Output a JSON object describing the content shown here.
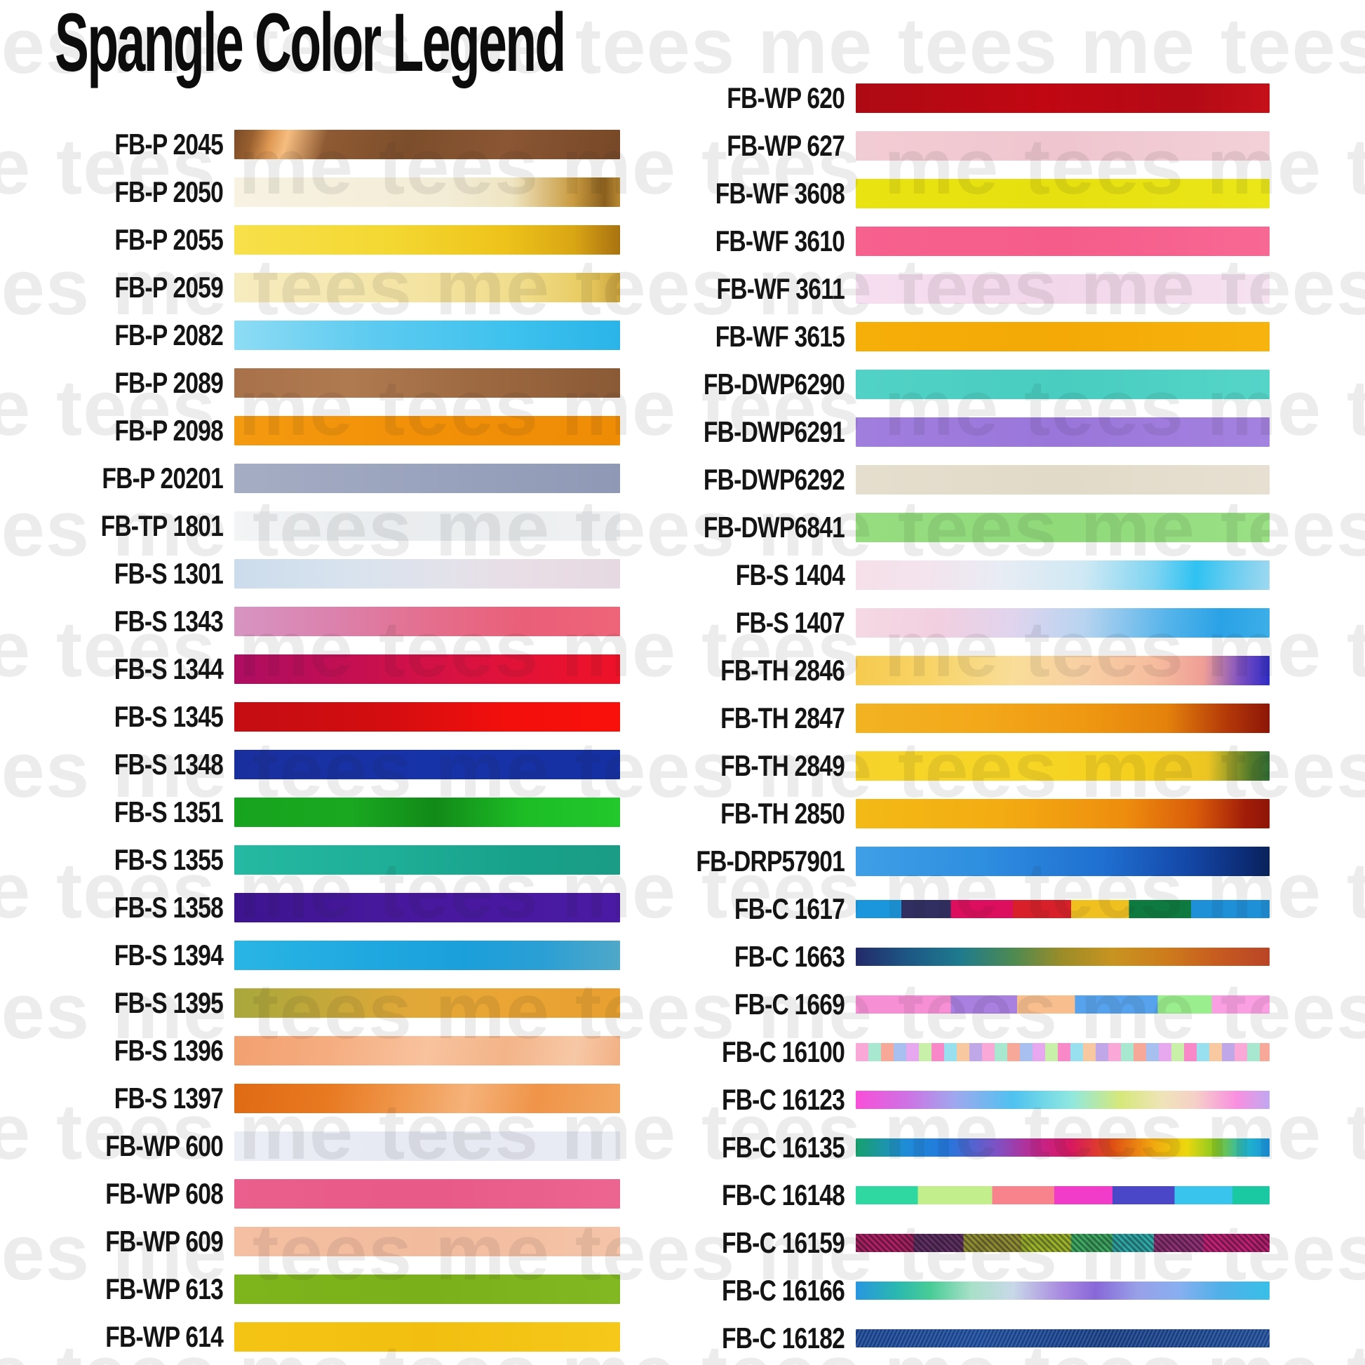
{
  "title": "Spangle Color Legend",
  "watermark": {
    "text": "tees me",
    "color": "rgba(40,40,40,0.085)"
  },
  "columns": {
    "left": [
      {
        "label": "FB-P 2045",
        "size": "standard",
        "swatch_css": "linear-gradient(105deg,#7a4a28 0%,#99602f 5%,#e09a55 10%,#f6bd80 14%,#8e5a33 24%,#7d4e2b 45%,#8a5633 70%,#774827 100%)"
      },
      {
        "label": "FB-P 2050",
        "size": "standard",
        "swatch_css": "linear-gradient(90deg,#f7f2e2 0%,#f3ecd6 55%,#efe5c2 72%,#c99a3f 88%,#8a5f1d 96%,#b98a33 100%)"
      },
      {
        "label": "FB-P 2055",
        "size": "standard",
        "swatch_css": "linear-gradient(90deg,#f7e04a 0%,#f4d832 40%,#eec31a 70%,#d9a614 88%,#b57e12 97%,#a87410 100%)"
      },
      {
        "label": "FB-P 2059",
        "size": "standard",
        "swatch_css": "linear-gradient(90deg,#f7ecc0 0%,#f4e4a4 45%,#f0dc8a 75%,#e7c95e 92%,#caa23c 100%)"
      },
      {
        "label": "FB-P 2082",
        "size": "standard",
        "swatch_css": "linear-gradient(90deg,#8edcf5 0%,#5ecbf0 35%,#3fc2ee 70%,#2ab4e8 100%)"
      },
      {
        "label": "FB-P 2089",
        "size": "standard",
        "swatch_css": "linear-gradient(90deg,#a8714a 0%,#b07a50 30%,#9c6840 65%,#8a5a36 100%)"
      },
      {
        "label": "FB-P 2098",
        "size": "standard",
        "swatch_css": "linear-gradient(90deg,#f49a10 0%,#f29008 50%,#ef8c06 100%)"
      },
      {
        "label": "FB-P 20201",
        "size": "standard",
        "swatch_css": "linear-gradient(90deg,#a5adc4 0%,#9aa3bd 50%,#8f99b5 100%)"
      },
      {
        "label": "FB-TP 1801",
        "size": "standard",
        "swatch_css": "linear-gradient(90deg,#f2f4f5 0%,#e9ecee 40%,#eff1f2 100%)"
      },
      {
        "label": "FB-S 1301",
        "size": "standard",
        "swatch_css": "linear-gradient(90deg,#ccdcec 0%,#d8e3ee 30%,#e3e2ea 55%,#e9dde6 75%,#e6d9e2 100%)"
      },
      {
        "label": "FB-S 1343",
        "size": "standard",
        "swatch_css": "linear-gradient(90deg,#d795c2 0%,#db82ae 25%,#e46f8e 50%,#ea5f78 75%,#ee6478 100%)"
      },
      {
        "label": "FB-S 1344",
        "size": "standard",
        "swatch_css": "linear-gradient(90deg,#ad0d62 0%,#c40f52 30%,#da1240 60%,#e81230 85%,#ee1228 100%)"
      },
      {
        "label": "FB-S 1345",
        "size": "standard",
        "swatch_css": "linear-gradient(90deg,#c40d12 0%,#d40d10 40%,#f20f0c 70%,#fa100a 100%)"
      },
      {
        "label": "FB-S 1348",
        "size": "standard",
        "swatch_css": "linear-gradient(90deg,#1a2f9e 0%,#1733a8 50%,#1530a2 100%)"
      },
      {
        "label": "FB-S 1351",
        "size": "standard",
        "swatch_css": "linear-gradient(90deg,#17a31d 0%,#1aa821 30%,#128a18 52%,#1dbd26 75%,#22c82c 100%)"
      },
      {
        "label": "FB-S 1355",
        "size": "standard",
        "swatch_css": "linear-gradient(90deg,#25b9a2 0%,#1fae97 40%,#17a18b 75%,#1b9c85 100%)"
      },
      {
        "label": "FB-S 1358",
        "size": "standard",
        "swatch_css": "linear-gradient(90deg,#3d1490 0%,#47189c 40%,#4a1aa4 100%)"
      },
      {
        "label": "FB-S 1394",
        "size": "standard",
        "swatch_css": "linear-gradient(90deg,#29b5e4 0%,#1fa8e0 35%,#1b9fdb 60%,#2b9fd4 80%,#4fa8c8 100%)"
      },
      {
        "label": "FB-S 1395",
        "size": "standard",
        "swatch_css": "linear-gradient(90deg,#a8a83c 0%,#c0a83a 20%,#e0a838 45%,#eaa534 70%,#e8a030 100%)"
      },
      {
        "label": "FB-S 1396",
        "size": "standard",
        "swatch_css": "linear-gradient(100deg,#f2a070 0%,#f5ad80 25%,#f8c39e 50%,#f3b488 70%,#f7c8a6 88%,#f2b084 100%)"
      },
      {
        "label": "FB-S 1397",
        "size": "standard",
        "swatch_css": "linear-gradient(100deg,#e06a14 0%,#e87a22 25%,#f09a50 45%,#f5b27a 60%,#ef9448 78%,#f2a862 100%)"
      },
      {
        "label": "FB-WP 600",
        "size": "standard",
        "swatch_css": "linear-gradient(90deg,#eceef6 0%,#e6e9f2 50%,#eaecf4 100%)"
      },
      {
        "label": "FB-WP 608",
        "size": "standard",
        "swatch_css": "linear-gradient(90deg,#ea5f8d 0%,#e85a88 50%,#ec6590 100%)"
      },
      {
        "label": "FB-WP 609",
        "size": "standard",
        "swatch_css": "linear-gradient(90deg,#f4bfa2 0%,#f2bb9e 50%,#f5c4a8 100%)"
      },
      {
        "label": "FB-WP 613",
        "size": "standard",
        "swatch_css": "linear-gradient(90deg,#7eb41c 0%,#7ab019 50%,#82b822 100%)"
      },
      {
        "label": "FB-WP 614",
        "size": "standard",
        "swatch_css": "linear-gradient(90deg,#f4c414 0%,#f2bf10 50%,#f5c81a 100%)"
      }
    ],
    "right": [
      {
        "label": "FB-WP 620",
        "size": "standard",
        "swatch_css": "linear-gradient(90deg,#ae0a14 0%,#c00712 45%,#b30a16 80%,#c51018 100%)"
      },
      {
        "label": "FB-WP 627",
        "size": "standard",
        "swatch_css": "linear-gradient(90deg,#f2ccd4 0%,#efc6cf 50%,#f3d0d8 100%)"
      },
      {
        "label": "FB-WF 3608",
        "size": "standard",
        "swatch_css": "linear-gradient(90deg,#e9e312 0%,#e6e010 50%,#ebe618 100%)"
      },
      {
        "label": "FB-WF 3610",
        "size": "standard",
        "swatch_css": "linear-gradient(90deg,#f7618e 0%,#f55c8a 50%,#f86894 100%)"
      },
      {
        "label": "FB-WF 3611",
        "size": "standard",
        "swatch_css": "linear-gradient(90deg,#f6dff0 0%,#f2d7ea 50%,#f6e2f0 100%)"
      },
      {
        "label": "FB-WF 3615",
        "size": "standard",
        "swatch_css": "linear-gradient(90deg,#f6ae08 0%,#f4a906 50%,#f7b30e 100%)"
      },
      {
        "label": "FB-DWP6290",
        "size": "standard",
        "swatch_css": "linear-gradient(90deg,#52d2c6 0%,#48cdc0 50%,#55d5c8 100%)"
      },
      {
        "label": "FB-DWP6291",
        "size": "standard",
        "swatch_css": "linear-gradient(90deg,#a07ede 0%,#9a76da 50%,#a482e0 100%)"
      },
      {
        "label": "FB-DWP6292",
        "size": "standard",
        "swatch_css": "linear-gradient(90deg,#e5dece 0%,#e2dac8 50%,#e7e0d2 100%)"
      },
      {
        "label": "FB-DWP6841",
        "size": "standard",
        "swatch_css": "linear-gradient(90deg,#96dd80 0%,#90da7a 50%,#9ae085 100%)"
      },
      {
        "label": "FB-S 1404",
        "size": "standard",
        "swatch_css": "linear-gradient(95deg,#f6dfe8 0%,#f3e4ee 18%,#e8ecf4 35%,#cfe9f4 55%,#7fd4f2 72%,#2ec2f2 82%,#66ccf0 90%,#9fd8f0 100%)"
      },
      {
        "label": "FB-S 1407",
        "size": "standard",
        "swatch_css": "linear-gradient(95deg,#f5d9e4 0%,#f2cfe0 20%,#e0d4ee 38%,#b8d4f0 55%,#56b4ea 75%,#2aa2e6 88%,#3dafe8 100%)"
      },
      {
        "label": "FB-TH 2846",
        "size": "standard",
        "swatch_css": "linear-gradient(92deg,#f6ca4e 0%,#f8d468 18%,#f9dd98 38%,#f8cfa4 55%,#f6bd9e 72%,#ef9e96 84%,#7a4ec2 93%,#2d2bc4 100%)"
      },
      {
        "label": "FB-TH 2847",
        "size": "standard",
        "swatch_css": "linear-gradient(92deg,#f2b322 0%,#f3a81a 30%,#ef9812 55%,#e4820c 75%,#b23708 90%,#8c1607 100%)"
      },
      {
        "label": "FB-TH 2849",
        "size": "standard",
        "swatch_css": "linear-gradient(92deg,#f6d32a 0%,#f7d626 40%,#f5cf1e 70%,#ecc523 85%,#567c2a 95%,#2f6b33 100%)"
      },
      {
        "label": "FB-TH 2850",
        "size": "standard",
        "swatch_css": "linear-gradient(92deg,#f3ba16 0%,#f3ac12 35%,#ee8d0e 65%,#d95c0a 82%,#a21d08 94%,#8e1507 100%)"
      },
      {
        "label": "FB-DRP57901",
        "size": "standard",
        "swatch_css": "linear-gradient(92deg,#3f9fe6 0%,#2f8fe0 30%,#1f6fd0 60%,#1448a8 80%,#0c2a72 95%,#0a2258 100%)"
      },
      {
        "label": "FB-C 1617",
        "size": "thin",
        "swatch_css": "linear-gradient(90deg,#1b96dc 0 11%,#312f62 11% 23%,#dc0f5e 23% 38%,#d8202a 38% 52%,#f0c020 52% 66%,#0e7a40 66% 81%,#1e90d8 81% 100%)"
      },
      {
        "label": "FB-C 1663",
        "size": "thin",
        "swatch_css": "linear-gradient(90deg,#232a6a 0%,#1d5584 12%,#1e7a8e 25%,#4d8a52 38%,#9c8c28 50%,#c89420 62%,#cd7c1c 75%,#c65a20 88%,#b94426 100%)"
      },
      {
        "label": "FB-C 1669",
        "size": "thin",
        "swatch_css": "linear-gradient(90deg,#f78fd5 0 23%,#a97fe0 23% 39%,#f8be8e 39% 53%,#56a2ec 53% 73%,#9bee8d 73% 86%,#fb9fe3 86% 100%)"
      },
      {
        "label": "FB-C 16100",
        "size": "thin",
        "swatch_css": "repeating-linear-gradient(90deg,#f9a8d8 0 18px,#a8e8d0 18px 36px,#f8a898 36px 54px,#a8c0f0 54px 72px,#e8a8f0 72px 90px,#c8f0a8 90px 108px,#f888c8 108px 126px,#98e0f0 126px 144px,#f8c8a0 144px 162px,#c0a8e8 162px 180px)"
      },
      {
        "label": "FB-C 16123",
        "size": "thin",
        "swatch_css": "linear-gradient(90deg,#f94fd8 0%,#d070e4 12%,#9fa8ee 24%,#4fc2f0 38%,#8fe8e0 52%,#d6e87a 64%,#efe4b8 74%,#f6d0c8 82%,#f98fe0 92%,#c0a8f0 100%)"
      },
      {
        "label": "FB-C 16135",
        "size": "thin",
        "swatch_css": "linear-gradient(90deg,#17a06b 0%,#1f8cd8 12%,#2377dc 22%,#7e52c4 34%,#c4248c 44%,#d81860 52%,#e04e14 62%,#f0a80f 72%,#ecd80f 80%,#86c822 87%,#22b8c8 94%,#1890e0 100%)"
      },
      {
        "label": "FB-C 16148",
        "size": "thin",
        "swatch_css": "linear-gradient(90deg,#2ed8a0 0 15%,#c2ee8c 15% 33%,#f8838c 33% 48%,#f03cc8 48% 62%,#4a48c8 62% 77%,#38c4ec 77% 91%,#1ac8a2 91% 100%)"
      },
      {
        "label": "FB-C 16159",
        "size": "thin",
        "swatch_css": "repeating-linear-gradient(45deg,rgba(10,10,40,0.35) 0 3px,rgba(255,255,255,0.05) 3px 6px),linear-gradient(90deg,#a81858 0 14%,#5a2858 14% 26%,#8a8828 26% 40%,#98b020 40% 52%,#38a858 52% 62%,#28a8a0 62% 72%,#882868 72% 84%,#b81868 84% 100%)"
      },
      {
        "label": "FB-C 16166",
        "size": "thin",
        "swatch_css": "linear-gradient(92deg,#2896e0 0%,#2ab8b0 10%,#48cc96 18%,#a8e0c8 28%,#c8d8e8 38%,#a888e0 50%,#8868d8 58%,#98a0e8 68%,#88aff0 78%,#50b0e8 88%,#38c0e8 100%)"
      },
      {
        "label": "FB-C 16182",
        "size": "thin",
        "swatch_css": "repeating-linear-gradient(115deg,rgba(255,255,255,0.12) 0 2px,rgba(0,0,40,0.12) 2px 5px),linear-gradient(90deg,#1d4894 0%,#20509e 30%,#1a4288 60%,#225098 100%)"
      }
    ]
  }
}
